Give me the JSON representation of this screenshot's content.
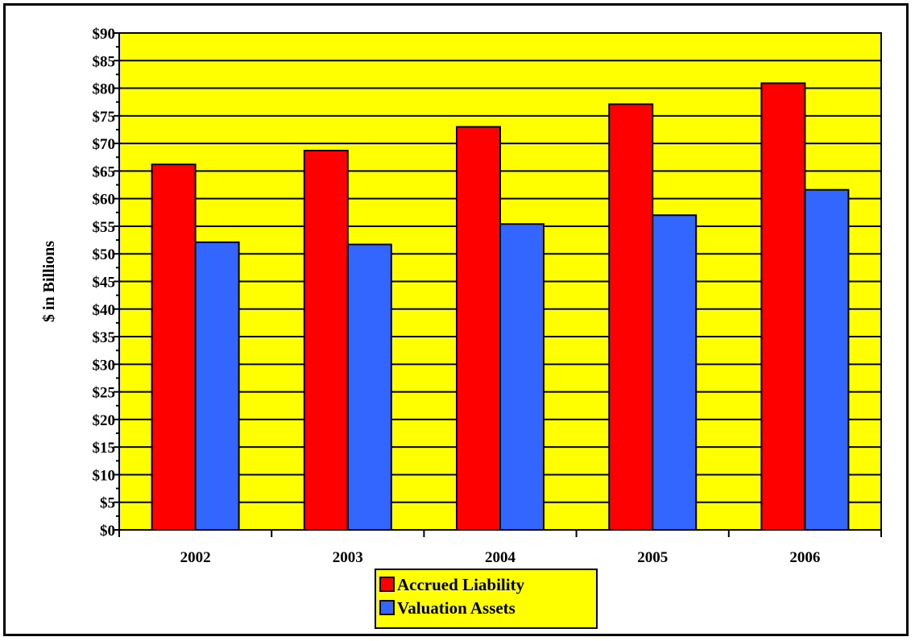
{
  "chart_data": {
    "type": "bar",
    "categories": [
      "2002",
      "2003",
      "2004",
      "2005",
      "2006"
    ],
    "series": [
      {
        "name": "Accrued Liability",
        "values": [
          66.2,
          68.7,
          73.0,
          77.1,
          80.9
        ],
        "color": "#ff0000"
      },
      {
        "name": "Valuation Assets",
        "values": [
          52.1,
          51.7,
          55.4,
          57.0,
          61.6
        ],
        "color": "#3366ff"
      }
    ],
    "title": "",
    "xlabel": "",
    "ylabel": "$ in Billions",
    "ylim": [
      0,
      90
    ],
    "ytick_step": 5,
    "ytick_labels": [
      "$0",
      "$5",
      "$10",
      "$15",
      "$20",
      "$25",
      "$30",
      "$35",
      "$40",
      "$45",
      "$50",
      "$55",
      "$60",
      "$65",
      "$70",
      "$75",
      "$80",
      "$85",
      "$90"
    ],
    "grid": true,
    "legend_position": "bottom-center",
    "plot_background": "#ffff00"
  }
}
